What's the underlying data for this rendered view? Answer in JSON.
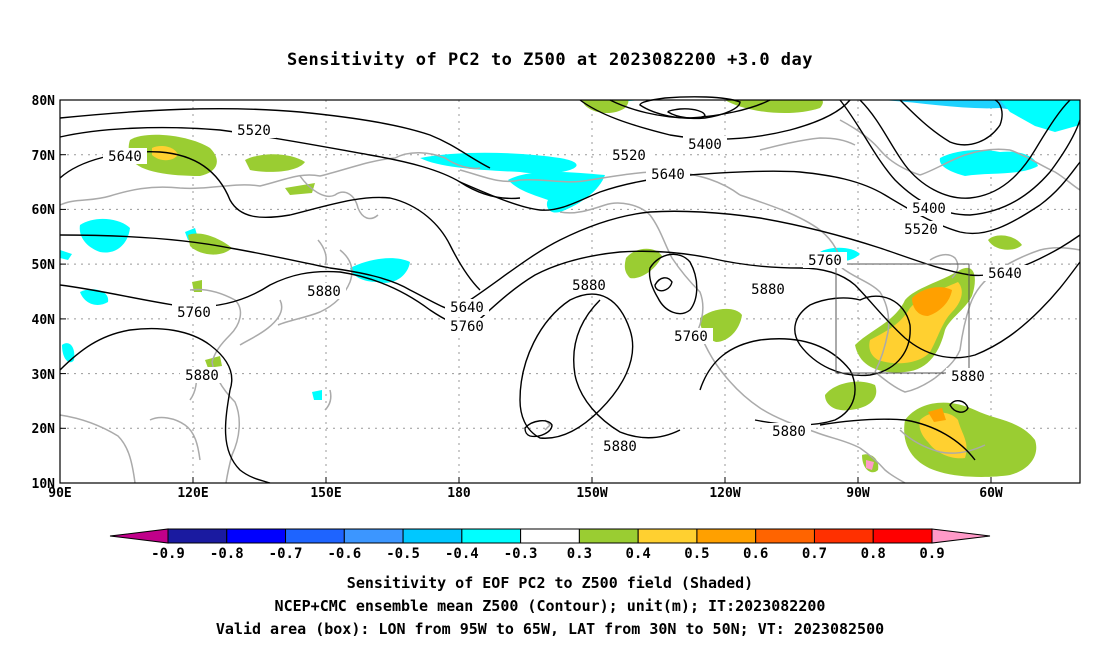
{
  "title": "Sensitivity of PC2 to Z500 at 2023082200 +3.0 day",
  "lat_labels": [
    "80N",
    "70N",
    "60N",
    "50N",
    "40N",
    "30N",
    "20N",
    "10N"
  ],
  "lon_labels": [
    "90E",
    "120E",
    "150E",
    "180",
    "150W",
    "120W",
    "90W",
    "60W"
  ],
  "contour_labels": {
    "c1": "5520",
    "c2": "5640",
    "c3": "5520",
    "c4": "5400",
    "c5": "5640",
    "c6": "5400",
    "c7": "5520",
    "c8": "5640",
    "c9": "5760",
    "c10": "5880",
    "c11": "5640",
    "c12": "5760",
    "c13": "5760",
    "c14": "5880",
    "c15": "5880",
    "c16": "5760",
    "c17": "5880",
    "c18": "5880",
    "c19": "5880",
    "c20": "5880"
  },
  "colorbar": {
    "colors": [
      "#c0008a",
      "#1a1aa0",
      "#0000ff",
      "#1e64ff",
      "#3c96ff",
      "#00c8ff",
      "#00ffff",
      "#ffffff",
      "#9acd32",
      "#ffd030",
      "#ffa000",
      "#ff6400",
      "#ff3000",
      "#ff0000",
      "#ff9ac8"
    ],
    "ticks": [
      "-0.9",
      "-0.8",
      "-0.7",
      "-0.6",
      "-0.5",
      "-0.4",
      "-0.3",
      "0.3",
      "0.4",
      "0.5",
      "0.6",
      "0.7",
      "0.8",
      "0.9"
    ]
  },
  "captions": {
    "line1": "Sensitivity of EOF PC2 to Z500 field (Shaded)",
    "line2": "NCEP+CMC ensemble mean Z500 (Contour); unit(m); IT:2023082200",
    "line3": "Valid area (box): LON from 95W to 65W, LAT from 30N to 50N; VT: 2023082500"
  }
}
